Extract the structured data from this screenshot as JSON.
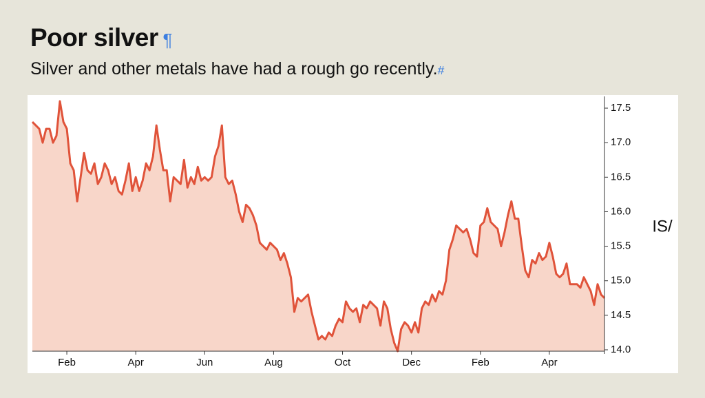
{
  "chart_data": {
    "type": "area",
    "title": "Poor silver",
    "subtitle": "Silver and other metals have had a rough go recently.",
    "y_label": "IS/",
    "xlim": [
      0,
      16.6
    ],
    "xticks": [
      {
        "value": 1,
        "label": "Feb"
      },
      {
        "value": 3,
        "label": "Apr"
      },
      {
        "value": 5,
        "label": "Jun"
      },
      {
        "value": 7,
        "label": "Aug"
      },
      {
        "value": 9,
        "label": "Oct"
      },
      {
        "value": 11,
        "label": "Dec"
      },
      {
        "value": 13,
        "label": "Feb"
      },
      {
        "value": 15,
        "label": "Apr"
      }
    ],
    "ylim": [
      13.98,
      17.67
    ],
    "yticks": [
      {
        "value": 14,
        "label": "14.0"
      },
      14.5,
      {
        "value": 15,
        "label": "15.0"
      },
      15.5,
      {
        "value": 16,
        "label": "16.0"
      },
      16.5,
      {
        "value": 17,
        "label": "17.0"
      },
      17.5
    ],
    "grid": false,
    "series": [
      {
        "color": "#e0533a",
        "fill": "#f8d6c9",
        "x": [
          0,
          0.1,
          0.2,
          0.3,
          0.4,
          0.5,
          0.6,
          0.7,
          0.8,
          0.9,
          1,
          1.1,
          1.2,
          1.3,
          1.4,
          1.5,
          1.6,
          1.7,
          1.8,
          1.9,
          2,
          2.1,
          2.2,
          2.3,
          2.4,
          2.5,
          2.6,
          2.7,
          2.8,
          2.9,
          3,
          3.1,
          3.2,
          3.3,
          3.4,
          3.5,
          3.6,
          3.7,
          3.8,
          3.9,
          4,
          4.1,
          4.2,
          4.3,
          4.4,
          4.5,
          4.6,
          4.7,
          4.8,
          4.9,
          5,
          5.1,
          5.2,
          5.3,
          5.4,
          5.5,
          5.6,
          5.7,
          5.8,
          5.9,
          6,
          6.1,
          6.2,
          6.3,
          6.4,
          6.5,
          6.6,
          6.7,
          6.8,
          6.9,
          7,
          7.1,
          7.2,
          7.3,
          7.4,
          7.5,
          7.6,
          7.7,
          7.8,
          7.9,
          8,
          8.1,
          8.2,
          8.3,
          8.4,
          8.5,
          8.6,
          8.7,
          8.8,
          8.9,
          9,
          9.1,
          9.2,
          9.3,
          9.4,
          9.5,
          9.6,
          9.7,
          9.8,
          9.9,
          10,
          10.1,
          10.2,
          10.3,
          10.4,
          10.5,
          10.6,
          10.7,
          10.8,
          10.9,
          11,
          11.1,
          11.2,
          11.3,
          11.4,
          11.5,
          11.6,
          11.7,
          11.8,
          11.9,
          12,
          12.1,
          12.2,
          12.3,
          12.4,
          12.5,
          12.6,
          12.7,
          12.8,
          12.9,
          13,
          13.1,
          13.2,
          13.3,
          13.4,
          13.5,
          13.6,
          13.7,
          13.8,
          13.9,
          14,
          14.1,
          14.2,
          14.3,
          14.4,
          14.5,
          14.6,
          14.7,
          14.8,
          14.9,
          15,
          15.1,
          15.2,
          15.3,
          15.4,
          15.5,
          15.6,
          15.7,
          15.8,
          15.9,
          16,
          16.1,
          16.2,
          16.3,
          16.4,
          16.5,
          16.6
        ],
        "values": [
          17.3,
          17.25,
          17.2,
          17.0,
          17.2,
          17.2,
          17.0,
          17.1,
          17.6,
          17.3,
          17.2,
          16.7,
          16.6,
          16.15,
          16.5,
          16.85,
          16.6,
          16.55,
          16.7,
          16.4,
          16.5,
          16.7,
          16.6,
          16.4,
          16.5,
          16.3,
          16.25,
          16.45,
          16.7,
          16.3,
          16.5,
          16.3,
          16.45,
          16.7,
          16.6,
          16.8,
          17.25,
          16.9,
          16.6,
          16.6,
          16.15,
          16.5,
          16.45,
          16.4,
          16.75,
          16.35,
          16.5,
          16.4,
          16.65,
          16.45,
          16.5,
          16.45,
          16.5,
          16.8,
          16.95,
          17.25,
          16.5,
          16.4,
          16.45,
          16.25,
          16.0,
          15.85,
          16.1,
          16.05,
          15.95,
          15.8,
          15.55,
          15.5,
          15.45,
          15.55,
          15.5,
          15.45,
          15.3,
          15.4,
          15.25,
          15.05,
          14.55,
          14.75,
          14.7,
          14.75,
          14.8,
          14.55,
          14.35,
          14.15,
          14.2,
          14.15,
          14.25,
          14.2,
          14.35,
          14.45,
          14.4,
          14.7,
          14.6,
          14.55,
          14.6,
          14.4,
          14.65,
          14.6,
          14.7,
          14.65,
          14.6,
          14.35,
          14.7,
          14.6,
          14.3,
          14.1,
          13.98,
          14.3,
          14.4,
          14.35,
          14.25,
          14.4,
          14.25,
          14.6,
          14.7,
          14.65,
          14.8,
          14.7,
          14.85,
          14.8,
          15.0,
          15.45,
          15.6,
          15.8,
          15.75,
          15.7,
          15.75,
          15.6,
          15.4,
          15.35,
          15.8,
          15.85,
          16.05,
          15.85,
          15.8,
          15.75,
          15.5,
          15.7,
          15.95,
          16.15,
          15.9,
          15.9,
          15.5,
          15.15,
          15.05,
          15.3,
          15.25,
          15.4,
          15.3,
          15.35,
          15.55,
          15.35,
          15.1,
          15.05,
          15.1,
          15.25,
          14.95,
          14.95,
          14.95,
          14.9,
          15.05,
          14.95,
          14.85,
          14.65,
          14.95,
          14.8,
          14.75
        ]
      }
    ]
  }
}
